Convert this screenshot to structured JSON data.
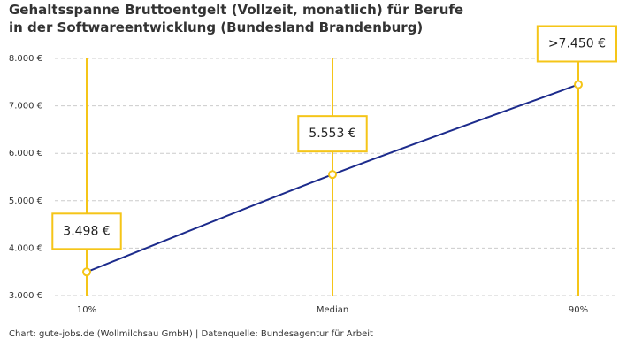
{
  "chart_data": {
    "type": "line",
    "title": "Gehaltsspanne Bruttoentgelt (Vollzeit, monatlich) für Berufe in der Softwareentwicklung (Bundesland Brandenburg)",
    "source": "Chart: gute-jobs.de (Wollmilchsau GmbH) | Datenquelle: Bundesagentur für Arbeit",
    "categories": [
      "10%",
      "Median",
      "90%"
    ],
    "series": [
      {
        "name": "Bruttoentgelt",
        "color": "#1c2b8c",
        "values": [
          3498,
          5553,
          7450
        ],
        "value_labels": [
          "3.498 €",
          "5.553 €",
          ">7.450 €"
        ]
      }
    ],
    "marker_color": "#f5c518",
    "ylim": [
      3000,
      8000
    ],
    "yticks": [
      {
        "value": 3000,
        "label": "3.000 €"
      },
      {
        "value": 4000,
        "label": "4.000 €"
      },
      {
        "value": 5000,
        "label": "5.000 €"
      },
      {
        "value": 6000,
        "label": "6.000 €"
      },
      {
        "value": 7000,
        "label": "7.000 €"
      },
      {
        "value": 8000,
        "label": "8.000 €"
      }
    ],
    "grid": true
  }
}
